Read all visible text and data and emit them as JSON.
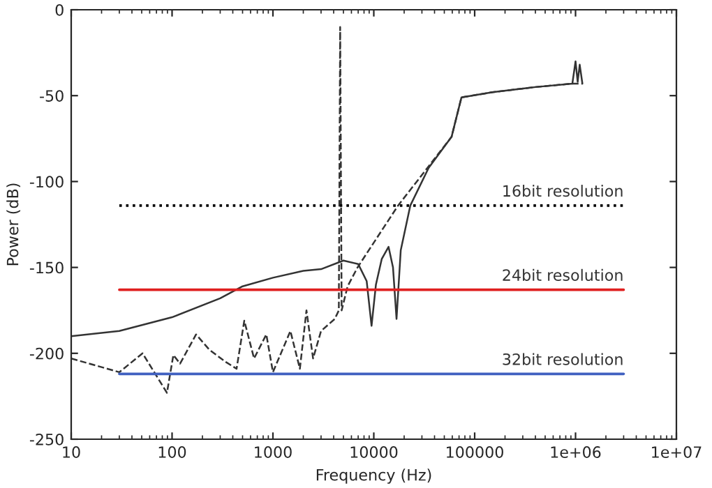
{
  "chart_data": {
    "type": "line",
    "xlabel": "Frequency (Hz)",
    "ylabel": "Power (dB)",
    "log": "x",
    "grid": false,
    "legend": false,
    "xlim": [
      10,
      10000000
    ],
    "ylim": [
      -250,
      0
    ],
    "xticks": [
      10,
      100,
      1000,
      10000,
      100000,
      {
        "value": 1000000,
        "label": "1e+06"
      },
      {
        "value": 10000000,
        "label": "1e+07"
      }
    ],
    "yticks": [
      -250,
      -200,
      -150,
      -100,
      -50,
      0
    ],
    "series": [
      {
        "color": "#333333",
        "line_style": "solid",
        "x": [
          10,
          30,
          100,
          300,
          500,
          1000,
          2000,
          3000,
          5000,
          7000,
          8500,
          9500,
          10500,
          12000,
          14000,
          15500,
          16800,
          18500,
          23000,
          35000,
          59000,
          74000,
          150000,
          400000,
          930000,
          1000000,
          1050000,
          1100000,
          1170000
        ],
        "values": [
          -190,
          -187,
          -179,
          -168,
          -161,
          -156,
          -152,
          -151,
          -146,
          -148,
          -158,
          -184,
          -160,
          -145,
          -138,
          -150,
          -180,
          -140,
          -114,
          -92,
          -74,
          -51,
          -48,
          -45,
          -43,
          -30,
          -42,
          -32,
          -43
        ]
      },
      {
        "color": "#333333",
        "line_style": "dashed",
        "x": [
          10,
          30,
          51,
          89,
          103,
          120,
          173,
          235,
          340,
          436,
          520,
          650,
          860,
          1000,
          1490,
          1850,
          2150,
          2500,
          3000,
          4100,
          4500,
          4640,
          4800,
          5500,
          6900,
          17400,
          59000,
          74000,
          150000,
          400000,
          930000,
          1170000
        ],
        "values": [
          -203,
          -211,
          -200,
          -223,
          -201,
          -206,
          -189,
          -198,
          -205,
          -209,
          -181,
          -203,
          -189,
          -211,
          -187,
          -209,
          -175,
          -203,
          -187,
          -180,
          -175,
          -10,
          -175,
          -161,
          -150,
          -114,
          -74,
          -51,
          -48,
          -45,
          -43,
          -43
        ]
      },
      {
        "name": "16bit resolution",
        "color": "#000000",
        "line_style": "dotted",
        "x": [
          30,
          3000000
        ],
        "values": [
          -114,
          -114
        ]
      },
      {
        "name": "24bit resolution",
        "color": "#e02020",
        "line_style": "solid",
        "x": [
          30,
          3000000
        ],
        "values": [
          -163,
          -163
        ]
      },
      {
        "name": "32bit resolution",
        "color": "#4060c0",
        "line_style": "solid",
        "x": [
          30,
          3000000
        ],
        "values": [
          -212,
          -212
        ]
      }
    ]
  }
}
